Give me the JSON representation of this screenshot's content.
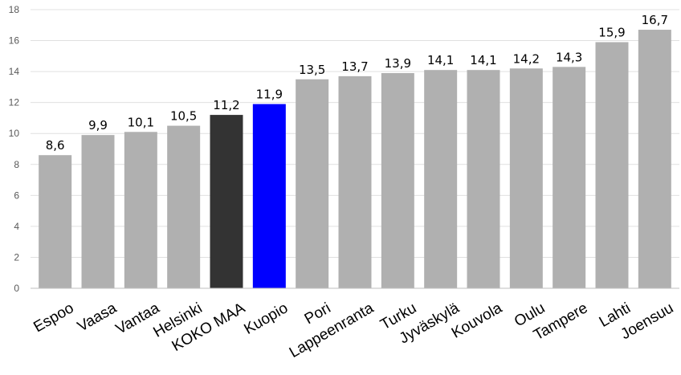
{
  "chart_data": {
    "type": "bar",
    "categories": [
      "Espoo",
      "Vaasa",
      "Vantaa",
      "Helsinki",
      "KOKO MAA",
      "Kuopio",
      "Pori",
      "Lappeenranta",
      "Turku",
      "Jyväskylä",
      "Kouvola",
      "Oulu",
      "Tampere",
      "Lahti",
      "Joensuu"
    ],
    "values": [
      8.6,
      9.9,
      10.1,
      10.5,
      11.2,
      11.9,
      13.5,
      13.7,
      13.9,
      14.1,
      14.1,
      14.2,
      14.3,
      15.9,
      16.7
    ],
    "data_labels": [
      "8,6",
      "9,9",
      "10,1",
      "10,5",
      "11,2",
      "11,9",
      "13,5",
      "13,7",
      "13,9",
      "14,1",
      "14,1",
      "14,2",
      "14,3",
      "15,9",
      "16,7"
    ],
    "colors": [
      "#b0b0b0",
      "#b0b0b0",
      "#b0b0b0",
      "#b0b0b0",
      "#333333",
      "#0000ff",
      "#b0b0b0",
      "#b0b0b0",
      "#b0b0b0",
      "#b0b0b0",
      "#b0b0b0",
      "#b0b0b0",
      "#b0b0b0",
      "#b0b0b0",
      "#b0b0b0"
    ],
    "title": "",
    "xlabel": "",
    "ylabel": "",
    "ylim": [
      0,
      18
    ],
    "yticks": [
      "0",
      "2",
      "4",
      "6",
      "8",
      "10",
      "12",
      "14",
      "16",
      "18"
    ],
    "grid": true,
    "legend": false
  }
}
